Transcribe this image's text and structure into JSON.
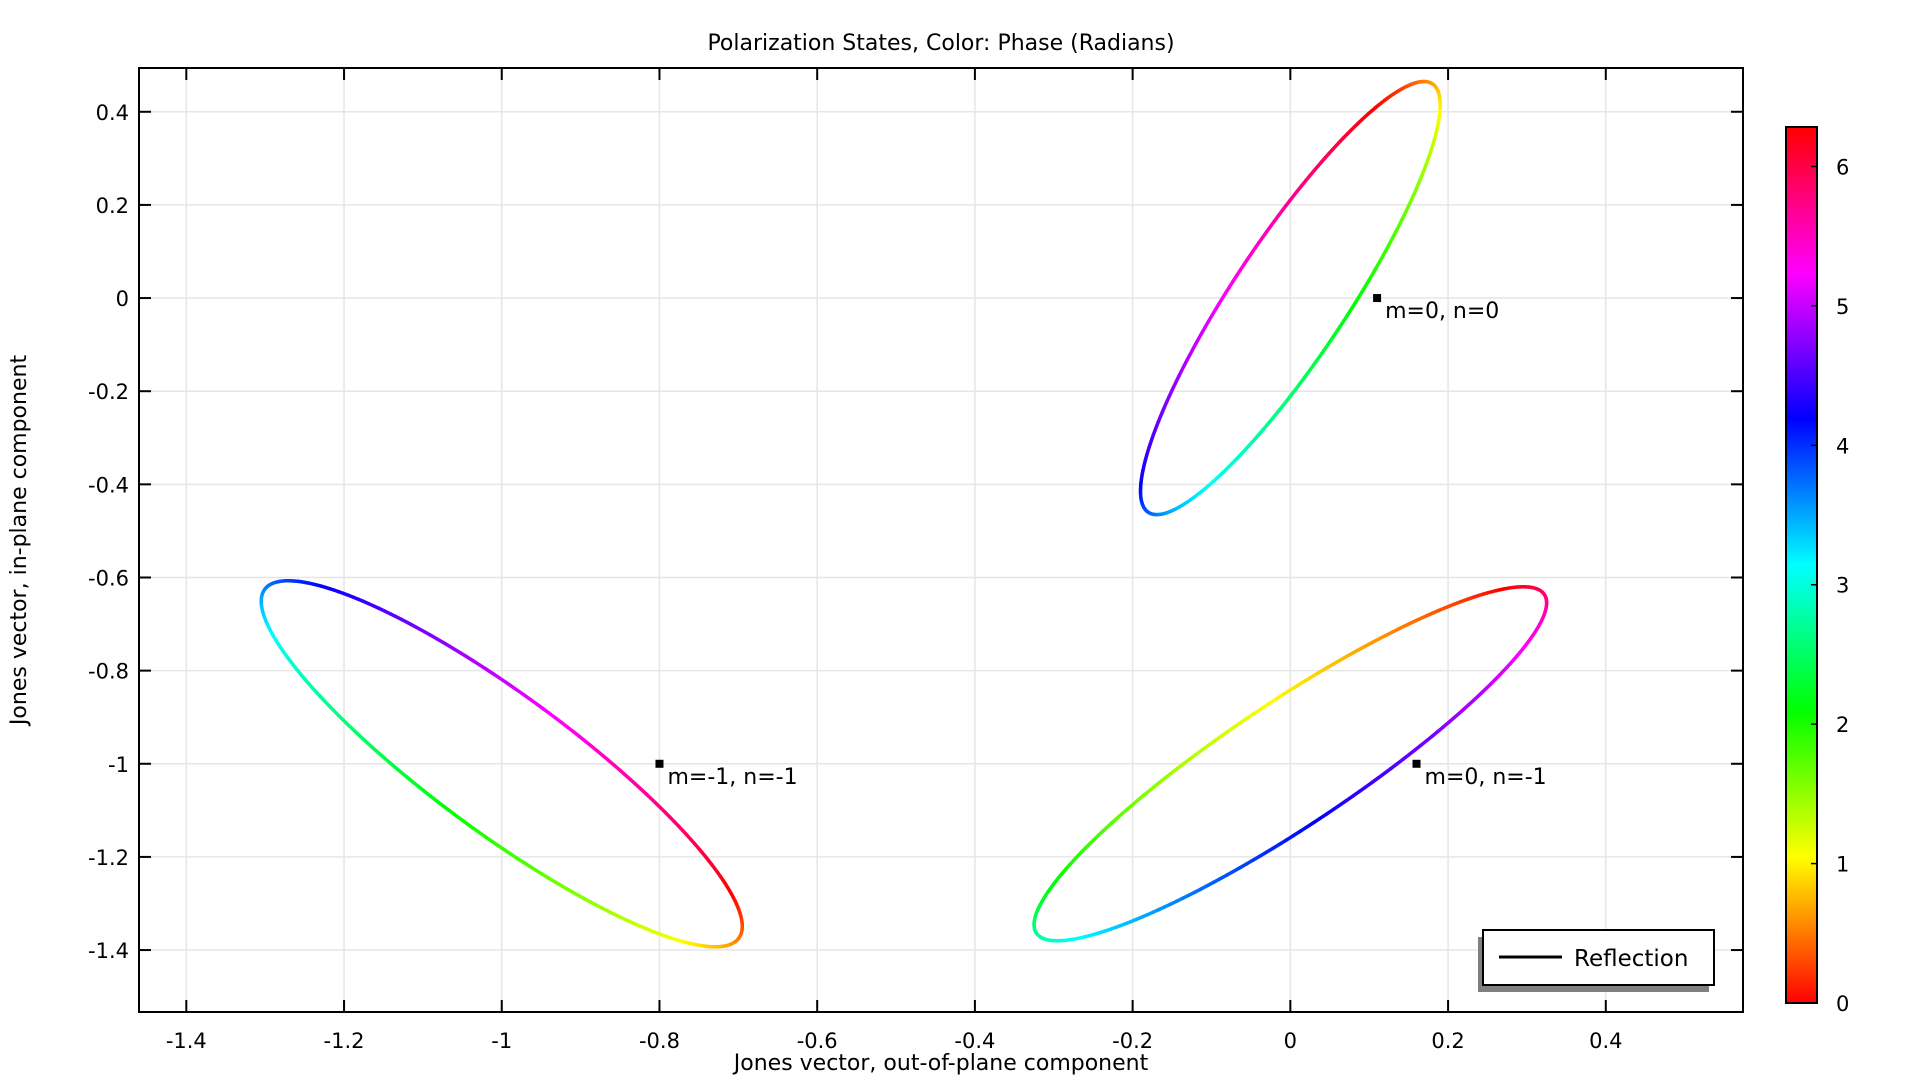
{
  "chart_data": {
    "type": "line",
    "title": "Polarization States, Color: Phase (Radians)",
    "xlabel": "Jones vector, out-of-plane component",
    "ylabel": "Jones vector, in-plane component",
    "xlim": [
      -1.46,
      0.574
    ],
    "ylim": [
      -1.533,
      0.494
    ],
    "xticks": [
      -1.4,
      -1.2,
      -1,
      -0.8,
      -0.6,
      -0.4,
      -0.2,
      0,
      0.2,
      0.4
    ],
    "xtick_labels": [
      "-1.4",
      "-1.2",
      "-1",
      "-0.8",
      "-0.6",
      "-0.4",
      "-0.2",
      "0",
      "0.2",
      "0.4"
    ],
    "yticks": [
      0.4,
      0.2,
      0,
      -0.2,
      -0.4,
      -0.6,
      -0.8,
      -1,
      -1.2,
      -1.4
    ],
    "ytick_labels": [
      "0.4",
      "0.2",
      "0",
      "-0.2",
      "-0.4",
      "-0.6",
      "-0.8",
      "-1",
      "-1.2",
      "-1.4"
    ],
    "grid": true,
    "legend": {
      "placement": "bottom-right",
      "entries": [
        "Reflection"
      ]
    },
    "colorbar": {
      "label": "Phase (Radians)",
      "range": [
        0,
        6.283
      ],
      "ticks": [
        0,
        1,
        2,
        3,
        4,
        5,
        6
      ],
      "tick_labels": [
        "0",
        "1",
        "2",
        "3",
        "4",
        "5",
        "6"
      ],
      "colormap": "hue-cyclic (red-yellow-green-cyan-blue-magenta-red)"
    },
    "series": [
      {
        "order": "m=0, n=0",
        "center": [
          0,
          0
        ],
        "x_amplitude": 0.19,
        "x_phase": 0.97,
        "y_amplitude": 0.465,
        "y_phase": 0.5
      },
      {
        "order": "m=-1, n=-1",
        "center": [
          -1,
          -1
        ],
        "x_amplitude": 0.305,
        "x_phase": 0.3,
        "y_amplitude": 0.393,
        "y_phase": 3.92
      },
      {
        "order": "m=0, n=-1",
        "center": [
          0,
          -1
        ],
        "x_amplitude": 0.325,
        "x_phase": 5.67,
        "y_amplitude": 0.38,
        "y_phase": 6.1
      }
    ],
    "annotations": [
      {
        "label": "m=0, n=0",
        "x": 0.11,
        "y": 0
      },
      {
        "label": "m=-1, n=-1",
        "x": -0.8,
        "y": -1
      },
      {
        "label": "m=0, n=-1",
        "x": 0.16,
        "y": -1
      }
    ]
  },
  "colors": {
    "grid": "#e6e6e6",
    "axes": "#000000",
    "legend_shadow": "#808080"
  }
}
